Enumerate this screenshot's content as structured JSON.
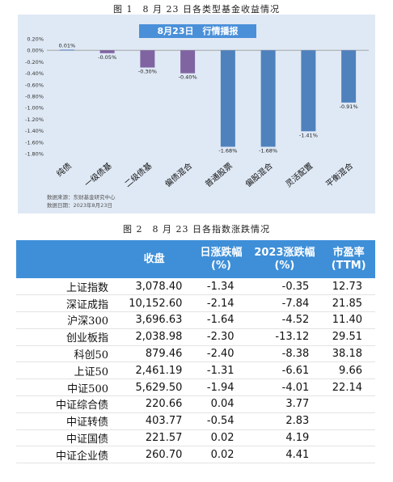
{
  "figure1": {
    "caption": "图 1　8 月 23 日各类型基金收益情况"
  },
  "figure2": {
    "caption": "图 2　8 月 23 日各指数涨跌情况"
  },
  "chart_data": {
    "type": "bar",
    "title": "8月23日　行情播报",
    "categories": [
      "纯债",
      "一级债基",
      "二级债基",
      "偏债混合",
      "普通股票",
      "偏股混合",
      "灵活配置",
      "平衡混合"
    ],
    "values": [
      0.01,
      -0.05,
      -0.3,
      -0.4,
      -1.68,
      -1.68,
      -1.41,
      -0.91
    ],
    "data_labels": [
      "0.01%",
      "-0.05%",
      "-0.30%",
      "-0.40%",
      "-1.68%",
      "-1.68%",
      "-1.41%",
      "-0.91%"
    ],
    "bar_colors": [
      "#4472c4",
      "#8064a2",
      "#8064a2",
      "#8064a2",
      "#4f81bd",
      "#4f81bd",
      "#4f81bd",
      "#4f81bd"
    ],
    "yticks": [
      "0.20%",
      "0.00%",
      "-0.20%",
      "-0.40%",
      "-0.60%",
      "-0.80%",
      "-1.00%",
      "-1.20%",
      "-1.40%",
      "-1.60%",
      "-1.80%"
    ],
    "ylim": [
      -1.8,
      0.2
    ],
    "xlabel": "",
    "ylabel": "",
    "grid": false,
    "source_lines": [
      "数据来源：东财基金研究中心",
      "数据日期：2023年8月23日"
    ]
  },
  "table": {
    "headers": [
      [
        "",
        ""
      ],
      [
        "收盘",
        ""
      ],
      [
        "日涨跌幅",
        "(%)"
      ],
      [
        "2023涨跌幅",
        "(%)"
      ],
      [
        "市盈率",
        "(TTM)"
      ]
    ],
    "rows": [
      {
        "name": "上证指数",
        "close": "3,078.40",
        "day": "-1.34",
        "ytd": "-0.35",
        "pe": "12.73"
      },
      {
        "name": "深证成指",
        "close": "10,152.60",
        "day": "-2.14",
        "ytd": "-7.84",
        "pe": "21.85"
      },
      {
        "name": "沪深300",
        "close": "3,696.63",
        "day": "-1.64",
        "ytd": "-4.52",
        "pe": "11.40"
      },
      {
        "name": "创业板指",
        "close": "2,038.98",
        "day": "-2.30",
        "ytd": "-13.12",
        "pe": "29.51"
      },
      {
        "name": "科创50",
        "close": "879.46",
        "day": "-2.40",
        "ytd": "-8.38",
        "pe": "38.18"
      },
      {
        "name": "上证50",
        "close": "2,461.19",
        "day": "-1.31",
        "ytd": "-6.61",
        "pe": "9.66"
      },
      {
        "name": "中证500",
        "close": "5,629.50",
        "day": "-1.94",
        "ytd": "-4.01",
        "pe": "22.14"
      },
      {
        "name": "中证综合债",
        "close": "220.66",
        "day": "0.04",
        "ytd": "3.77",
        "pe": ""
      },
      {
        "name": "中证转债",
        "close": "403.77",
        "day": "-0.54",
        "ytd": "2.83",
        "pe": ""
      },
      {
        "name": "中证国债",
        "close": "221.57",
        "day": "0.02",
        "ytd": "4.19",
        "pe": ""
      },
      {
        "name": "中证企业债",
        "close": "260.70",
        "day": "0.02",
        "ytd": "4.41",
        "pe": ""
      }
    ]
  }
}
